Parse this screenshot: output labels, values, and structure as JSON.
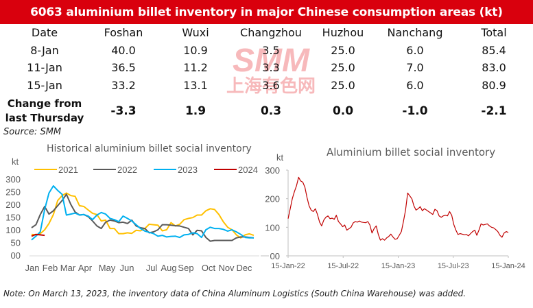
{
  "title": "6063 aluminium billet inventory in major Chinese consumption areas (kt)",
  "table": {
    "headers": [
      "Date",
      "Foshan",
      "Wuxi",
      "Changzhou",
      "Huzhou",
      "Nanchang",
      "Total"
    ],
    "rows": [
      [
        "8-Jan",
        "40.0",
        "10.9",
        "3.5",
        "25.0",
        "6.0",
        "85.4"
      ],
      [
        "11-Jan",
        "36.5",
        "11.2",
        "3.3",
        "25.0",
        "7.0",
        "83.0"
      ],
      [
        "15-Jan",
        "33.2",
        "13.1",
        "3.6",
        "25.0",
        "6.0",
        "80.9"
      ]
    ],
    "change_label_line1": "Change from",
    "change_label_line2": "last Thursday",
    "change_values": [
      "-3.3",
      "1.9",
      "0.3",
      "0.0",
      "-1.0",
      "-2.1"
    ]
  },
  "source": "Source: SMM",
  "watermark": {
    "latin": "SMM",
    "chinese": "上海有色网",
    "color": "#f7b9bb"
  },
  "note": "Note: On March 13, 2023, the inventory data of China Aluminum Logistics (South China Warehouse) was added.",
  "colors": {
    "brand_red": "#d9000d",
    "s2021": "#ffc000",
    "s2022": "#595959",
    "s2023": "#00b0f0",
    "s2024": "#c00000",
    "right_line": "#c00000"
  },
  "chart_data": [
    {
      "type": "line",
      "title": "Historical aluminium billet social inventory",
      "ylabel": "kt",
      "ylim": [
        0,
        300
      ],
      "yticks": [
        0,
        50,
        100,
        150,
        200,
        250,
        300
      ],
      "ytick_labels": [
        "00",
        "50",
        "100",
        "150",
        "200",
        "250",
        "300"
      ],
      "xtick_labels": [
        "Jan",
        "Feb",
        "Mar",
        "Apr",
        "May",
        "Jun",
        "Jul",
        "Aug",
        "Sep",
        "Oct",
        "Nov",
        "Dec"
      ],
      "x_unit": "week of year (0-51)",
      "legend": [
        "2021",
        "2022",
        "2023",
        "2024"
      ],
      "legend_position": "top",
      "grid": false,
      "series": [
        {
          "name": "2021",
          "color": "#ffc000",
          "values": [
            82,
            80,
            85,
            100,
            125,
            160,
            215,
            235,
            245,
            235,
            232,
            195,
            192,
            178,
            165,
            160,
            135,
            138,
            105,
            105,
            85,
            85,
            88,
            86,
            98,
            96,
            105,
            122,
            120,
            118,
            96,
            100,
            128,
            115,
            122,
            140,
            145,
            148,
            158,
            158,
            175,
            183,
            180,
            160,
            132,
            110,
            100,
            80,
            68,
            80,
            84,
            78
          ]
        },
        {
          "name": "2022",
          "color": "#595959",
          "values": [
            108,
            120,
            160,
            192,
            162,
            175,
            195,
            215,
            240,
            200,
            170,
            158,
            160,
            152,
            135,
            115,
            105,
            130,
            138,
            135,
            128,
            130,
            125,
            138,
            115,
            108,
            105,
            88,
            92,
            100,
            120,
            120,
            118,
            116,
            115,
            110,
            105,
            80,
            98,
            96,
            70,
            55,
            58,
            58,
            58,
            58,
            58,
            68,
            72,
            72,
            70,
            68
          ]
        },
        {
          "name": "2023",
          "color": "#00b0f0",
          "values": [
            60,
            75,
            92,
            180,
            245,
            273,
            255,
            240,
            158,
            162,
            166,
            158,
            160,
            154,
            140,
            158,
            168,
            162,
            145,
            140,
            132,
            154,
            145,
            135,
            120,
            105,
            95,
            90,
            85,
            75,
            78,
            72,
            74,
            75,
            70,
            80,
            82,
            88,
            85,
            70,
            100,
            110,
            105,
            105,
            102,
            95,
            100,
            92,
            82,
            70,
            68,
            68
          ]
        },
        {
          "name": "2024",
          "color": "#c00000",
          "values": [
            75,
            82,
            80,
            78
          ]
        }
      ]
    },
    {
      "type": "line",
      "title": "Aluminium billet social inventory",
      "ylabel": "kt",
      "ylim": [
        0,
        300
      ],
      "yticks": [
        0,
        100,
        200,
        300
      ],
      "ytick_labels": [
        "00",
        "100",
        "200",
        "300"
      ],
      "xtick_labels": [
        "15-Jan-22",
        "15-Jul-22",
        "15-Jan-23",
        "15-Jul-23",
        "15-Jan-24"
      ],
      "x_range_weeks": [
        0,
        104
      ],
      "grid": false,
      "series": [
        {
          "name": "Aluminium billet social inventory",
          "color": "#c00000",
          "values": [
            130,
            165,
            200,
            225,
            245,
            275,
            262,
            258,
            240,
            205,
            175,
            160,
            155,
            165,
            145,
            118,
            105,
            125,
            135,
            140,
            130,
            132,
            128,
            142,
            120,
            112,
            102,
            108,
            90,
            95,
            100,
            115,
            120,
            118,
            122,
            118,
            117,
            116,
            120,
            108,
            80,
            95,
            105,
            75,
            55,
            60,
            55,
            63,
            68,
            76,
            66,
            58,
            60,
            72,
            85,
            120,
            160,
            220,
            210,
            200,
            175,
            160,
            165,
            172,
            158,
            165,
            160,
            155,
            150,
            145,
            163,
            158,
            140,
            135,
            140,
            142,
            140,
            155,
            142,
            110,
            90,
            75,
            78,
            76,
            74,
            75,
            70,
            78,
            85,
            90,
            72,
            90,
            112,
            108,
            110,
            112,
            105,
            100,
            98,
            92,
            85,
            72,
            65,
            80,
            85,
            82
          ]
        }
      ]
    }
  ]
}
